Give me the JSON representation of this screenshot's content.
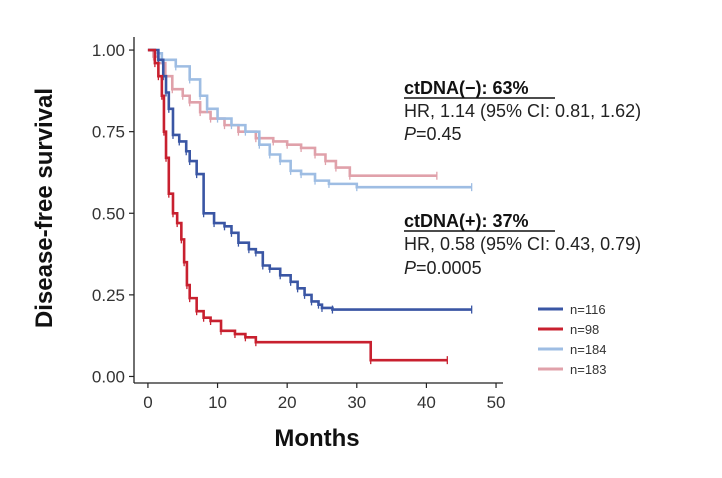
{
  "chart_data": {
    "type": "line",
    "step": true,
    "xlabel": "Months",
    "ylabel": "Disease-free survival",
    "xlim": [
      -2,
      51
    ],
    "ylim": [
      -0.02,
      1.04
    ],
    "xticks": [
      0,
      10,
      20,
      30,
      40,
      50
    ],
    "yticks": [
      0,
      0.25,
      0.5,
      0.75,
      1
    ],
    "ytick_labels": [
      "0.00",
      "0.25",
      "0.50",
      "0.75",
      "1.00"
    ],
    "grid": false,
    "legend_position": "right",
    "series": [
      {
        "name": "n=116",
        "color": "#3a56a4",
        "x": [
          0,
          1.5,
          2.2,
          2.6,
          3.0,
          3.6,
          4.5,
          5.5,
          6.0,
          7.0,
          8.0,
          9.5,
          11.0,
          12.0,
          13.0,
          14.5,
          15.5,
          16.5,
          17.5,
          19.0,
          20.5,
          21.5,
          22.5,
          23.5,
          24.5,
          25.0,
          26.5,
          46.5
        ],
        "y": [
          1.0,
          0.97,
          0.92,
          0.87,
          0.82,
          0.74,
          0.72,
          0.69,
          0.66,
          0.62,
          0.5,
          0.47,
          0.46,
          0.44,
          0.41,
          0.39,
          0.38,
          0.34,
          0.33,
          0.31,
          0.29,
          0.27,
          0.25,
          0.23,
          0.22,
          0.21,
          0.205,
          0.205
        ]
      },
      {
        "name": "n=98",
        "color": "#c8202f",
        "x": [
          0,
          1.0,
          1.5,
          2.0,
          2.3,
          2.6,
          3.0,
          3.6,
          4.2,
          4.8,
          5.2,
          5.6,
          6.0,
          7.0,
          8.0,
          9.0,
          10.5,
          12.5,
          14.0,
          15.5,
          32.0,
          43.0
        ],
        "y": [
          1.0,
          0.96,
          0.92,
          0.86,
          0.75,
          0.67,
          0.56,
          0.5,
          0.47,
          0.42,
          0.35,
          0.28,
          0.24,
          0.2,
          0.18,
          0.17,
          0.14,
          0.13,
          0.12,
          0.105,
          0.05,
          0.05
        ]
      },
      {
        "name": "n=184",
        "color": "#9ebde3",
        "x": [
          0,
          1.0,
          2.0,
          4.0,
          6.0,
          7.5,
          8.5,
          10.0,
          12.0,
          14.0,
          16.0,
          17.5,
          19.0,
          20.5,
          22.0,
          24.0,
          26.0,
          30.0,
          46.5
        ],
        "y": [
          1.0,
          0.99,
          0.97,
          0.95,
          0.91,
          0.86,
          0.82,
          0.79,
          0.77,
          0.75,
          0.71,
          0.68,
          0.66,
          0.63,
          0.62,
          0.6,
          0.59,
          0.58,
          0.58
        ]
      },
      {
        "name": "n=183",
        "color": "#e0a1aa",
        "x": [
          0,
          0.8,
          1.5,
          2.5,
          3.5,
          5.0,
          6.0,
          7.5,
          9.0,
          11.0,
          13.0,
          15.5,
          18.0,
          20.0,
          22.0,
          24.0,
          25.5,
          27.0,
          29.0,
          41.5
        ],
        "y": [
          1.0,
          0.98,
          0.96,
          0.92,
          0.88,
          0.86,
          0.84,
          0.81,
          0.79,
          0.77,
          0.75,
          0.73,
          0.72,
          0.71,
          0.7,
          0.68,
          0.66,
          0.64,
          0.615,
          0.615
        ]
      }
    ],
    "annotations": [
      {
        "title": "ctDNA(−): 63%",
        "hr_line": "HR, 1.14 (95% CI: 0.81, 1.62)",
        "p_label": "P",
        "p_value": "=0.45"
      },
      {
        "title": "ctDNA(+): 37%",
        "hr_line": "HR, 0.58 (95% CI: 0.43, 0.79)",
        "p_label": "P",
        "p_value": "=0.0005"
      }
    ]
  }
}
